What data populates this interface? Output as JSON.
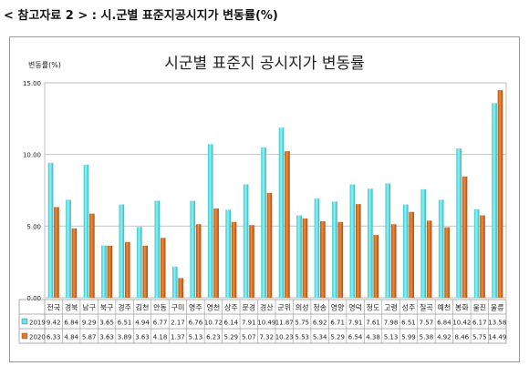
{
  "header": {
    "text": "< 참고자료 2 > : 시.군별 표준지공시지가 변동률(%)"
  },
  "chart_data": {
    "type": "bar",
    "title": "시군별 표준지 공시지가 변동률",
    "ylabel": "변동률(%)",
    "xlabel": "",
    "ylim": [
      0,
      15
    ],
    "yticks": [
      "0.00",
      "5.00",
      "10.00",
      "15.00"
    ],
    "grid": true,
    "legend": "bottom-table",
    "categories": [
      "전국",
      "경북",
      "남구",
      "북구",
      "경주",
      "김천",
      "안동",
      "구미",
      "영주",
      "영천",
      "상주",
      "문경",
      "경산",
      "군위",
      "의성",
      "청송",
      "영양",
      "영덕",
      "청도",
      "고령",
      "성주",
      "칠곡",
      "예천",
      "봉화",
      "울진",
      "울릉"
    ],
    "series": [
      {
        "name": "2019",
        "color": "#5ee6ea",
        "values": [
          9.42,
          6.84,
          9.29,
          3.65,
          6.51,
          4.94,
          6.77,
          2.17,
          6.76,
          10.72,
          6.14,
          7.91,
          10.49,
          11.87,
          5.75,
          6.92,
          6.71,
          7.91,
          7.61,
          7.98,
          6.51,
          7.57,
          6.84,
          10.42,
          6.17,
          13.58
        ]
      },
      {
        "name": "2020",
        "color": "#e07a25",
        "values": [
          6.33,
          4.84,
          5.87,
          3.63,
          3.89,
          3.63,
          4.18,
          1.37,
          5.13,
          6.23,
          5.29,
          5.07,
          7.32,
          10.23,
          5.53,
          5.34,
          5.29,
          6.54,
          4.38,
          5.13,
          5.99,
          5.38,
          4.92,
          8.46,
          5.75,
          14.49
        ]
      }
    ]
  }
}
